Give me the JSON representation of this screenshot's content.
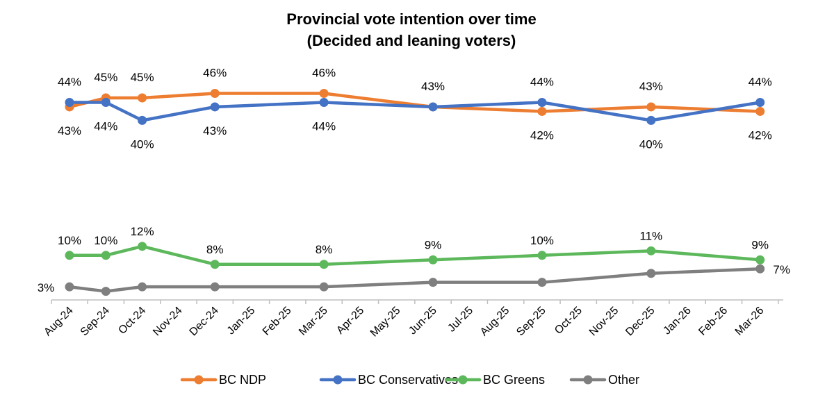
{
  "chart_data": {
    "type": "line",
    "title_lines": [
      "Provincial vote intention over time",
      "(Decided and leaning voters)"
    ],
    "xlabel": "",
    "ylabel": "",
    "categories": [
      "Aug-24",
      "Sep-24",
      "Oct-24",
      "Nov-24",
      "Dec-24",
      "Jan-25",
      "Feb-25",
      "Mar-25",
      "Apr-25",
      "May-25",
      "Jun-25",
      "Jul-25",
      "Aug-25",
      "Sep-25",
      "Oct-25",
      "Nov-25",
      "Dec-25",
      "Jan-26",
      "Feb-26",
      "Mar-26"
    ],
    "ylim": [
      0,
      50
    ],
    "grid": false,
    "legend_position": "bottom",
    "series": [
      {
        "name": "BC NDP",
        "color": "#ED7D31",
        "points": [
          [
            "Aug-24",
            43
          ],
          [
            "Sep-24",
            45
          ],
          [
            "Oct-24",
            45
          ],
          [
            "Dec-24",
            46
          ],
          [
            "Mar-25",
            46
          ],
          [
            "Jun-25",
            43
          ],
          [
            "Sep-25",
            42
          ],
          [
            "Dec-25",
            43
          ],
          [
            "Mar-26",
            42
          ]
        ],
        "labels": [
          "43%",
          "45%",
          "45%",
          "46%",
          "46%",
          "",
          "42%",
          "43%",
          "42%"
        ]
      },
      {
        "name": "BC Conservatives",
        "color": "#4472C4",
        "points": [
          [
            "Aug-24",
            44
          ],
          [
            "Sep-24",
            44
          ],
          [
            "Oct-24",
            40
          ],
          [
            "Dec-24",
            43
          ],
          [
            "Mar-25",
            44
          ],
          [
            "Jun-25",
            43
          ],
          [
            "Sep-25",
            44
          ],
          [
            "Dec-25",
            40
          ],
          [
            "Mar-26",
            44
          ]
        ],
        "labels": [
          "44%",
          "44%",
          "40%",
          "43%",
          "44%",
          "43%",
          "44%",
          "40%",
          "44%"
        ]
      },
      {
        "name": "BC Greens",
        "color": "#5DB85C",
        "points": [
          [
            "Aug-24",
            10
          ],
          [
            "Sep-24",
            10
          ],
          [
            "Oct-24",
            12
          ],
          [
            "Dec-24",
            8
          ],
          [
            "Mar-25",
            8
          ],
          [
            "Jun-25",
            9
          ],
          [
            "Sep-25",
            10
          ],
          [
            "Dec-25",
            11
          ],
          [
            "Mar-26",
            9
          ]
        ],
        "labels": [
          "10%",
          "10%",
          "12%",
          "8%",
          "8%",
          "9%",
          "10%",
          "11%",
          "9%"
        ]
      },
      {
        "name": "Other",
        "color": "#7F7F7F",
        "points": [
          [
            "Aug-24",
            3
          ],
          [
            "Sep-24",
            2
          ],
          [
            "Oct-24",
            3
          ],
          [
            "Dec-24",
            3
          ],
          [
            "Mar-25",
            3
          ],
          [
            "Jun-25",
            4
          ],
          [
            "Sep-25",
            4
          ],
          [
            "Dec-25",
            6
          ],
          [
            "Mar-26",
            7
          ]
        ],
        "labels": [
          "3%",
          "",
          "",
          "",
          "",
          "",
          "",
          "",
          "7%"
        ]
      }
    ]
  }
}
